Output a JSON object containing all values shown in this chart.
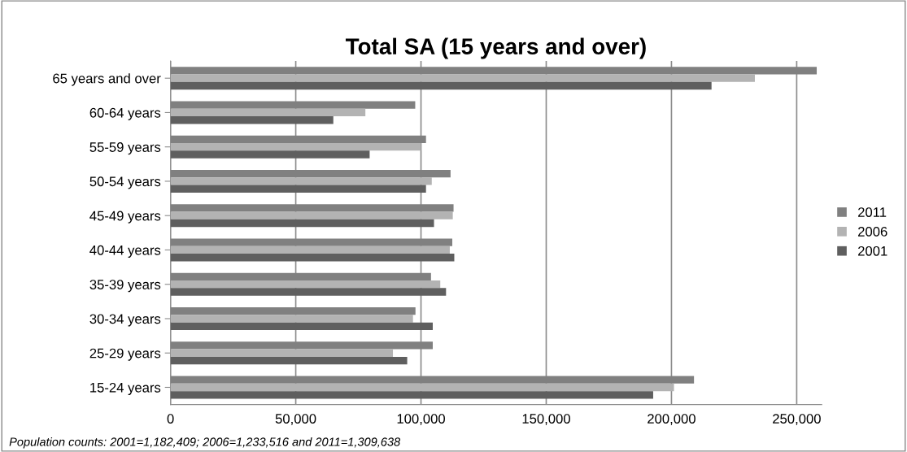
{
  "chart_data": {
    "type": "bar",
    "orientation": "horizontal",
    "title": "Total SA (15 years and over)",
    "categories": [
      "65 years and over",
      "60-64 years",
      "55-59 years",
      "50-54 years",
      "45-49 years",
      "40-44 years",
      "35-39 years",
      "30-34 years",
      "25-29 years",
      "15-24 years"
    ],
    "series": [
      {
        "name": "2011",
        "color": "#808080",
        "values": [
          258000,
          97700,
          102000,
          111800,
          113000,
          112500,
          104000,
          97800,
          104700,
          209000
        ]
      },
      {
        "name": "2006",
        "color": "#b3b3b3",
        "values": [
          233300,
          77800,
          100000,
          104300,
          112700,
          111500,
          107700,
          96800,
          88800,
          201000
        ]
      },
      {
        "name": "2001",
        "color": "#5f5f5f",
        "values": [
          216000,
          65000,
          79500,
          102000,
          105200,
          113300,
          110000,
          104700,
          94500,
          192700
        ]
      }
    ],
    "xlim": [
      0,
      260000
    ],
    "xticks": [
      {
        "value": 0,
        "label": "0"
      },
      {
        "value": 50000,
        "label": "50,000"
      },
      {
        "value": 100000,
        "label": "100,000"
      },
      {
        "value": 150000,
        "label": "150,000"
      },
      {
        "value": 200000,
        "label": "200,000"
      },
      {
        "value": 250000,
        "label": "250,000"
      }
    ],
    "grid": "x",
    "legend": "right",
    "annotations": [
      "Population counts: 2001=1,182,409; 2006=1,233,516 and 2011=1,309,638"
    ]
  }
}
